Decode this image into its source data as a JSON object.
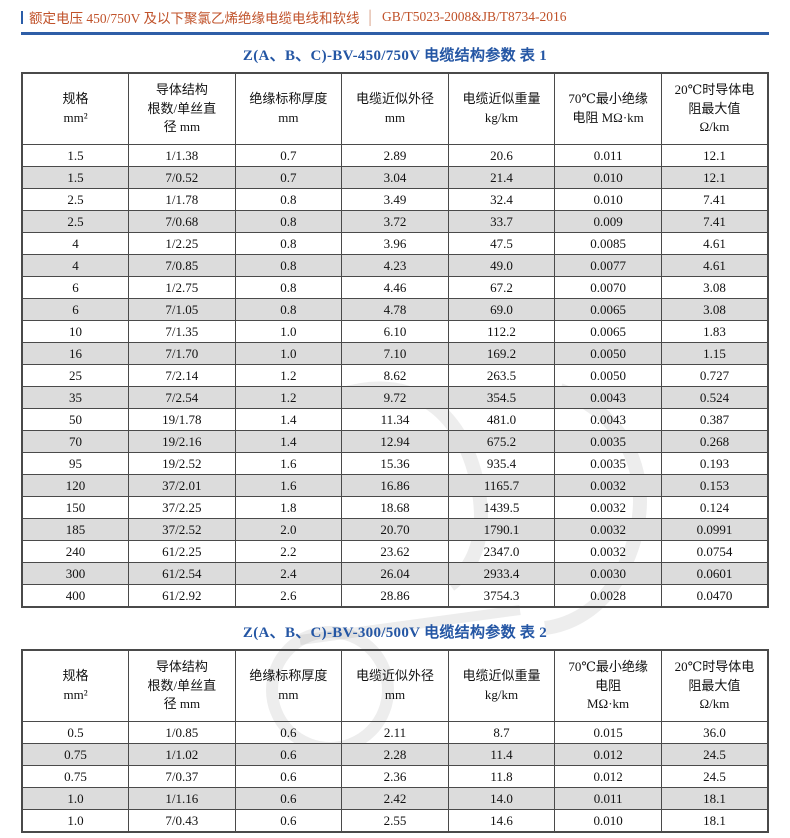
{
  "header": {
    "title": "额定电压 450/750V 及以下聚氯乙烯绝缘电缆电线和软线",
    "separator": "│",
    "standard": "GB/T5023-2008&JB/T8734-2016"
  },
  "colors": {
    "accent_orange": "#c0522a",
    "accent_blue": "#2e5ea7",
    "title_blue": "#2456a4",
    "row_alt_gray": "#dcdcdc",
    "table_border": "#4a4a4a"
  },
  "table1": {
    "title": "Z(A、B、C)-BV-450/750V 电缆结构参数  表 1",
    "columns": [
      {
        "lines": [
          "规格",
          "mm²"
        ]
      },
      {
        "lines": [
          "导体结构",
          "根数/单丝直",
          "径 mm"
        ]
      },
      {
        "lines": [
          "绝缘标称厚度",
          "mm"
        ]
      },
      {
        "lines": [
          "电缆近似外径",
          "mm"
        ]
      },
      {
        "lines": [
          "电缆近似重量",
          "kg/km"
        ]
      },
      {
        "lines": [
          "70℃最小绝缘",
          "电阻 MΩ·km"
        ]
      },
      {
        "lines": [
          "20℃时导体电",
          "阻最大值",
          "Ω/km"
        ]
      }
    ],
    "rows": [
      [
        "1.5",
        "1/1.38",
        "0.7",
        "2.89",
        "20.6",
        "0.011",
        "12.1"
      ],
      [
        "1.5",
        "7/0.52",
        "0.7",
        "3.04",
        "21.4",
        "0.010",
        "12.1"
      ],
      [
        "2.5",
        "1/1.78",
        "0.8",
        "3.49",
        "32.4",
        "0.010",
        "7.41"
      ],
      [
        "2.5",
        "7/0.68",
        "0.8",
        "3.72",
        "33.7",
        "0.009",
        "7.41"
      ],
      [
        "4",
        "1/2.25",
        "0.8",
        "3.96",
        "47.5",
        "0.0085",
        "4.61"
      ],
      [
        "4",
        "7/0.85",
        "0.8",
        "4.23",
        "49.0",
        "0.0077",
        "4.61"
      ],
      [
        "6",
        "1/2.75",
        "0.8",
        "4.46",
        "67.2",
        "0.0070",
        "3.08"
      ],
      [
        "6",
        "7/1.05",
        "0.8",
        "4.78",
        "69.0",
        "0.0065",
        "3.08"
      ],
      [
        "10",
        "7/1.35",
        "1.0",
        "6.10",
        "112.2",
        "0.0065",
        "1.83"
      ],
      [
        "16",
        "7/1.70",
        "1.0",
        "7.10",
        "169.2",
        "0.0050",
        "1.15"
      ],
      [
        "25",
        "7/2.14",
        "1.2",
        "8.62",
        "263.5",
        "0.0050",
        "0.727"
      ],
      [
        "35",
        "7/2.54",
        "1.2",
        "9.72",
        "354.5",
        "0.0043",
        "0.524"
      ],
      [
        "50",
        "19/1.78",
        "1.4",
        "11.34",
        "481.0",
        "0.0043",
        "0.387"
      ],
      [
        "70",
        "19/2.16",
        "1.4",
        "12.94",
        "675.2",
        "0.0035",
        "0.268"
      ],
      [
        "95",
        "19/2.52",
        "1.6",
        "15.36",
        "935.4",
        "0.0035",
        "0.193"
      ],
      [
        "120",
        "37/2.01",
        "1.6",
        "16.86",
        "1165.7",
        "0.0032",
        "0.153"
      ],
      [
        "150",
        "37/2.25",
        "1.8",
        "18.68",
        "1439.5",
        "0.0032",
        "0.124"
      ],
      [
        "185",
        "37/2.52",
        "2.0",
        "20.70",
        "1790.1",
        "0.0032",
        "0.0991"
      ],
      [
        "240",
        "61/2.25",
        "2.2",
        "23.62",
        "2347.0",
        "0.0032",
        "0.0754"
      ],
      [
        "300",
        "61/2.54",
        "2.4",
        "26.04",
        "2933.4",
        "0.0030",
        "0.0601"
      ],
      [
        "400",
        "61/2.92",
        "2.6",
        "28.86",
        "3754.3",
        "0.0028",
        "0.0470"
      ]
    ]
  },
  "table2": {
    "title": "Z(A、B、C)-BV-300/500V 电缆结构参数  表 2",
    "columns": [
      {
        "lines": [
          "规格",
          "mm²"
        ]
      },
      {
        "lines": [
          "导体结构",
          "根数/单丝直",
          "径 mm"
        ]
      },
      {
        "lines": [
          "绝缘标称厚度",
          "mm"
        ]
      },
      {
        "lines": [
          "电缆近似外径",
          "mm"
        ]
      },
      {
        "lines": [
          "电缆近似重量",
          "kg/km"
        ]
      },
      {
        "lines": [
          "70℃最小绝缘",
          "电阻",
          "MΩ·km"
        ]
      },
      {
        "lines": [
          "20℃时导体电",
          "阻最大值",
          "Ω/km"
        ]
      }
    ],
    "rows": [
      [
        "0.5",
        "1/0.85",
        "0.6",
        "2.11",
        "8.7",
        "0.015",
        "36.0"
      ],
      [
        "0.75",
        "1/1.02",
        "0.6",
        "2.28",
        "11.4",
        "0.012",
        "24.5"
      ],
      [
        "0.75",
        "7/0.37",
        "0.6",
        "2.36",
        "11.8",
        "0.012",
        "24.5"
      ],
      [
        "1.0",
        "1/1.16",
        "0.6",
        "2.42",
        "14.0",
        "0.011",
        "18.1"
      ],
      [
        "1.0",
        "7/0.43",
        "0.6",
        "2.55",
        "14.6",
        "0.010",
        "18.1"
      ]
    ]
  }
}
